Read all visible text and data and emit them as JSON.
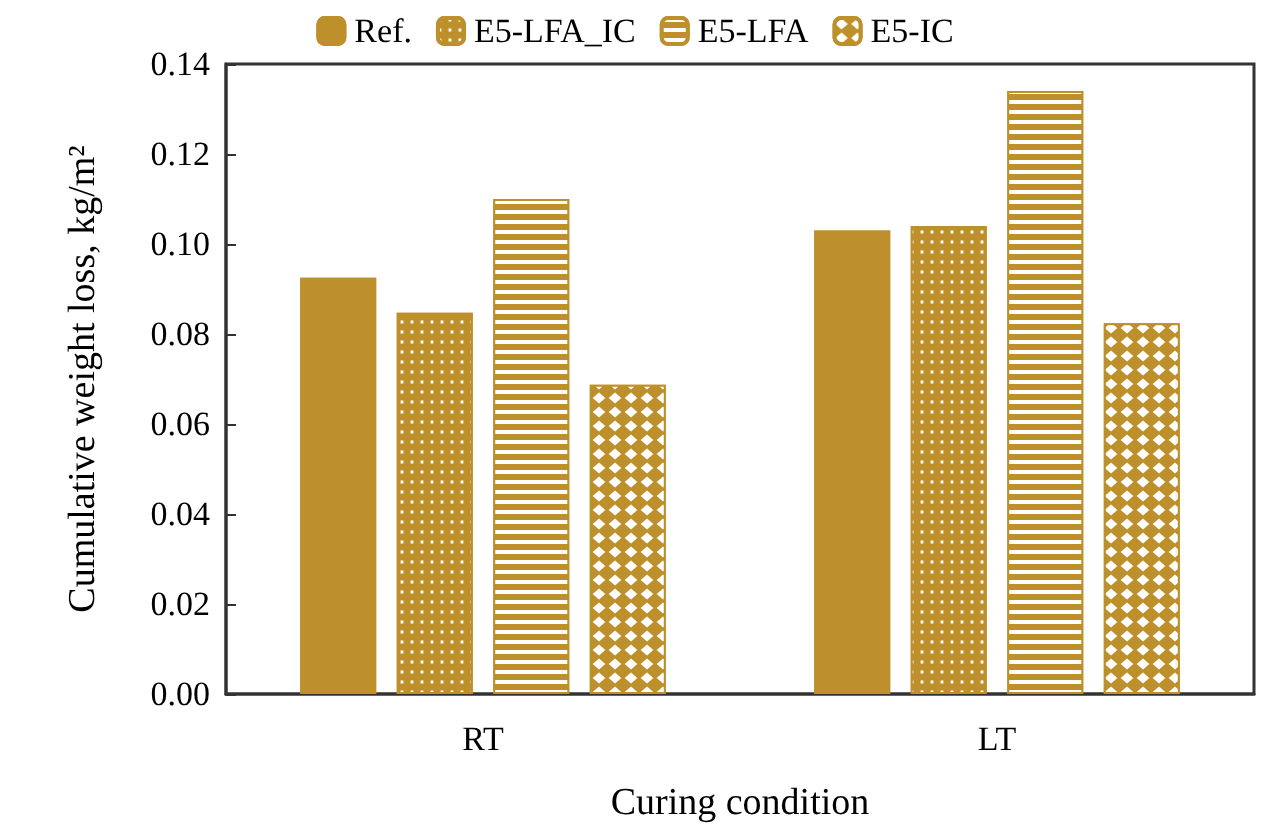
{
  "chart_data": {
    "type": "bar",
    "xlabel": "Curing condition",
    "ylabel": "Cumulative weight loss, kg/m²",
    "categories": [
      "RT",
      "LT"
    ],
    "series": [
      {
        "name": "Ref.",
        "color": "#be902c",
        "values": [
          0.0925,
          0.103
        ]
      },
      {
        "name": "E5-LFA_IC",
        "color": "#be902c",
        "values": [
          0.0847,
          0.104
        ]
      },
      {
        "name": "E5-LFA",
        "color": "#be902c",
        "values": [
          0.11,
          0.134
        ]
      },
      {
        "name": "E5-IC",
        "color": "#be902c",
        "values": [
          0.0687,
          0.0824
        ]
      }
    ],
    "ylim": [
      0,
      0.14
    ],
    "yticks": [
      {
        "value": 0,
        "label": "0.00"
      },
      0.02,
      0.04,
      0.06,
      0.08,
      {
        "value": 0.1,
        "label": "0.10"
      },
      0.12,
      0.14
    ],
    "grid": false,
    "legend": "top"
  }
}
